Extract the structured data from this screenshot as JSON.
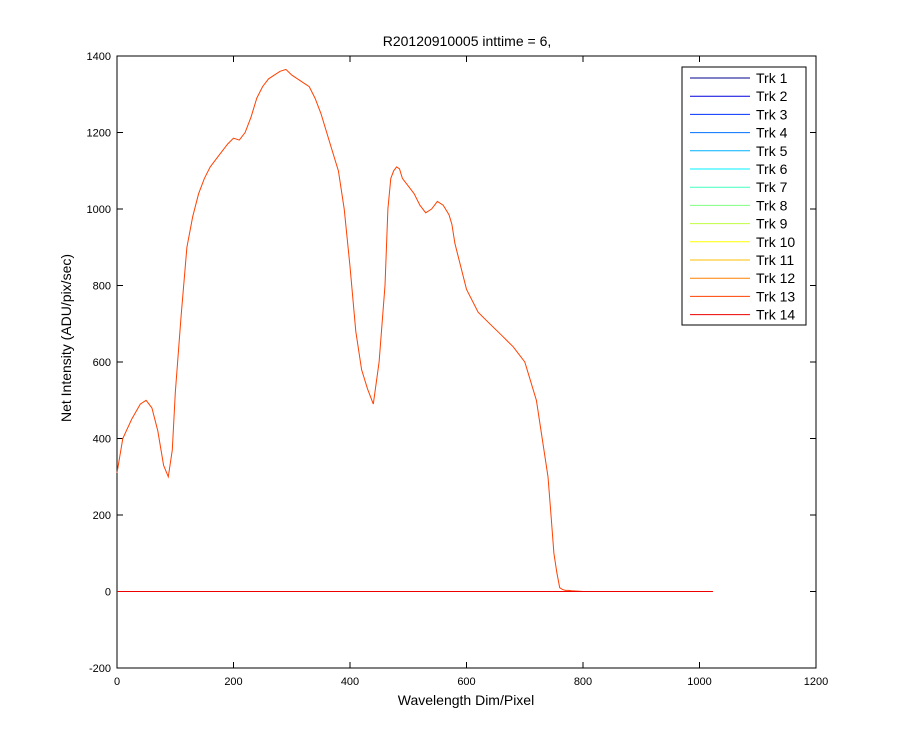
{
  "chart_data": {
    "type": "line",
    "title": "R20120910005 inttime = 6,",
    "xlabel": "Wavelength Dim/Pixel",
    "ylabel": "Net Intensity (ADU/pix/sec)",
    "xlim": [
      0,
      1200
    ],
    "ylim": [
      -200,
      1400
    ],
    "xticks": [
      0,
      200,
      400,
      600,
      800,
      1000,
      1200
    ],
    "yticks": [
      -200,
      0,
      200,
      400,
      600,
      800,
      1000,
      1200,
      1400
    ],
    "grid": false,
    "legend_position": "top-right",
    "series": [
      {
        "name": "Trk 1",
        "color": "#00008F",
        "x": [
          0,
          1023
        ],
        "y": [
          0,
          0
        ]
      },
      {
        "name": "Trk 2",
        "color": "#0000DF",
        "x": [
          0,
          1023
        ],
        "y": [
          0,
          0
        ]
      },
      {
        "name": "Trk 3",
        "color": "#0030FF",
        "x": [
          0,
          1023
        ],
        "y": [
          0,
          0
        ]
      },
      {
        "name": "Trk 4",
        "color": "#0070FF",
        "x": [
          0,
          1023
        ],
        "y": [
          0,
          0
        ]
      },
      {
        "name": "Trk 5",
        "color": "#00B0FF",
        "x": [
          0,
          1023
        ],
        "y": [
          0,
          0
        ]
      },
      {
        "name": "Trk 6",
        "color": "#00F0FF",
        "x": [
          0,
          1023
        ],
        "y": [
          0,
          0
        ]
      },
      {
        "name": "Trk 7",
        "color": "#40FFBF",
        "x": [
          0,
          1023
        ],
        "y": [
          0,
          0
        ]
      },
      {
        "name": "Trk 8",
        "color": "#80FF80",
        "x": [
          0,
          1023
        ],
        "y": [
          0,
          0
        ]
      },
      {
        "name": "Trk 9",
        "color": "#BFFF40",
        "x": [
          0,
          1023
        ],
        "y": [
          0,
          0
        ]
      },
      {
        "name": "Trk 10",
        "color": "#FFFF00",
        "x": [
          0,
          1023
        ],
        "y": [
          0,
          0
        ]
      },
      {
        "name": "Trk 11",
        "color": "#FFBF00",
        "x": [
          0,
          1023
        ],
        "y": [
          0,
          0
        ]
      },
      {
        "name": "Trk 12",
        "color": "#FF8000",
        "x": [
          0,
          1023
        ],
        "y": [
          0,
          0
        ]
      },
      {
        "name": "Trk 13",
        "color": "#FF4000",
        "x": [
          0,
          10,
          25,
          40,
          50,
          60,
          70,
          80,
          88,
          95,
          100,
          110,
          120,
          130,
          140,
          150,
          160,
          175,
          190,
          200,
          210,
          220,
          230,
          240,
          250,
          260,
          270,
          280,
          290,
          300,
          310,
          320,
          330,
          340,
          350,
          360,
          370,
          380,
          390,
          400,
          410,
          420,
          430,
          440,
          450,
          460,
          465,
          470,
          475,
          480,
          485,
          490,
          500,
          510,
          520,
          530,
          540,
          550,
          560,
          570,
          575,
          580,
          590,
          600,
          620,
          640,
          660,
          680,
          700,
          720,
          730,
          740,
          745,
          750,
          755,
          760,
          765,
          770,
          775,
          780,
          790,
          800,
          820,
          860,
          900,
          1023
        ],
        "y": [
          310,
          400,
          450,
          490,
          500,
          480,
          420,
          330,
          300,
          370,
          520,
          720,
          900,
          980,
          1040,
          1080,
          1110,
          1140,
          1170,
          1185,
          1180,
          1200,
          1240,
          1290,
          1320,
          1340,
          1350,
          1360,
          1365,
          1350,
          1340,
          1330,
          1320,
          1290,
          1250,
          1200,
          1150,
          1100,
          1000,
          850,
          680,
          580,
          530,
          490,
          600,
          800,
          1000,
          1080,
          1100,
          1110,
          1105,
          1080,
          1060,
          1040,
          1010,
          990,
          1000,
          1020,
          1010,
          985,
          960,
          910,
          850,
          790,
          730,
          700,
          670,
          640,
          600,
          500,
          400,
          300,
          200,
          100,
          50,
          10,
          5,
          3,
          3,
          2,
          1,
          0,
          0,
          0,
          0,
          0
        ]
      },
      {
        "name": "Trk 14",
        "color": "#EF0000",
        "x": [
          0,
          1023
        ],
        "y": [
          0,
          0
        ]
      }
    ]
  }
}
